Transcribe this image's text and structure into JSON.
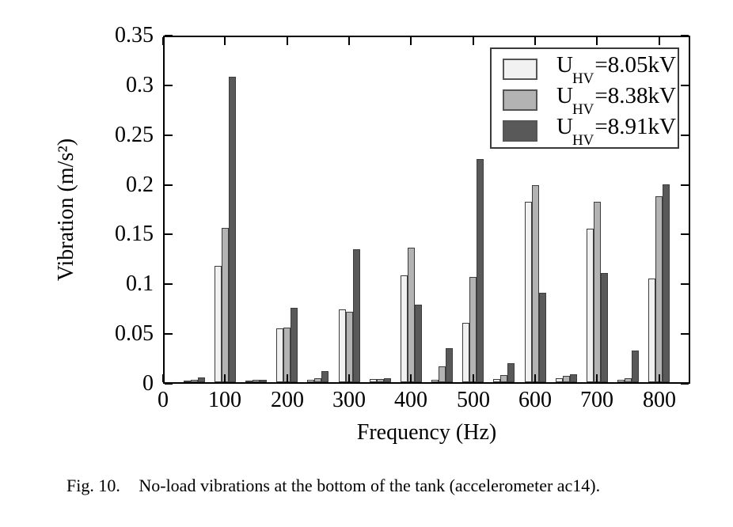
{
  "figure": {
    "caption": {
      "label": "Fig. 10.",
      "text": "No-load vibrations at the bottom of the tank (accelerometer ac14)."
    }
  },
  "chart_data": {
    "type": "bar",
    "title": "",
    "xlabel": "Frequency (Hz)",
    "ylabel": "Vibration (m/s²)",
    "xlim": [
      0,
      850
    ],
    "ylim": [
      0,
      0.35
    ],
    "x_ticks": [
      0,
      100,
      200,
      300,
      400,
      500,
      600,
      700,
      800
    ],
    "x_tick_labels": [
      "0",
      "100",
      "200",
      "300",
      "400",
      "500",
      "600",
      "700",
      "800"
    ],
    "y_ticks": [
      0,
      0.05,
      0.1,
      0.15,
      0.2,
      0.25,
      0.3,
      0.35
    ],
    "y_tick_labels": [
      "0",
      "0.05",
      "0.1",
      "0.15",
      "0.2",
      "0.25",
      "0.3",
      "0.35"
    ],
    "grid": false,
    "legend_position": "top-right",
    "categories": [
      50,
      100,
      150,
      200,
      250,
      300,
      350,
      400,
      450,
      500,
      550,
      600,
      650,
      700,
      750,
      800
    ],
    "series": [
      {
        "name": "U_HV=8.05kV",
        "color": "#f1f1f1",
        "values": [
          0.001,
          0.117,
          0.001,
          0.054,
          0.002,
          0.073,
          0.003,
          0.107,
          0.002,
          0.06,
          0.003,
          0.181,
          0.004,
          0.154,
          0.002,
          0.104
        ]
      },
      {
        "name": "U_HV=8.38kV",
        "color": "#b3b3b3",
        "values": [
          0.002,
          0.155,
          0.002,
          0.055,
          0.004,
          0.071,
          0.003,
          0.135,
          0.016,
          0.106,
          0.007,
          0.198,
          0.006,
          0.181,
          0.004,
          0.187
        ]
      },
      {
        "name": "U_HV=8.91kV",
        "color": "#595959",
        "values": [
          0.005,
          0.307,
          0.002,
          0.075,
          0.011,
          0.134,
          0.004,
          0.078,
          0.034,
          0.224,
          0.019,
          0.09,
          0.008,
          0.11,
          0.032,
          0.199
        ]
      }
    ],
    "bar_border_color": "#3d3d3d",
    "axis_color": "#000000"
  }
}
